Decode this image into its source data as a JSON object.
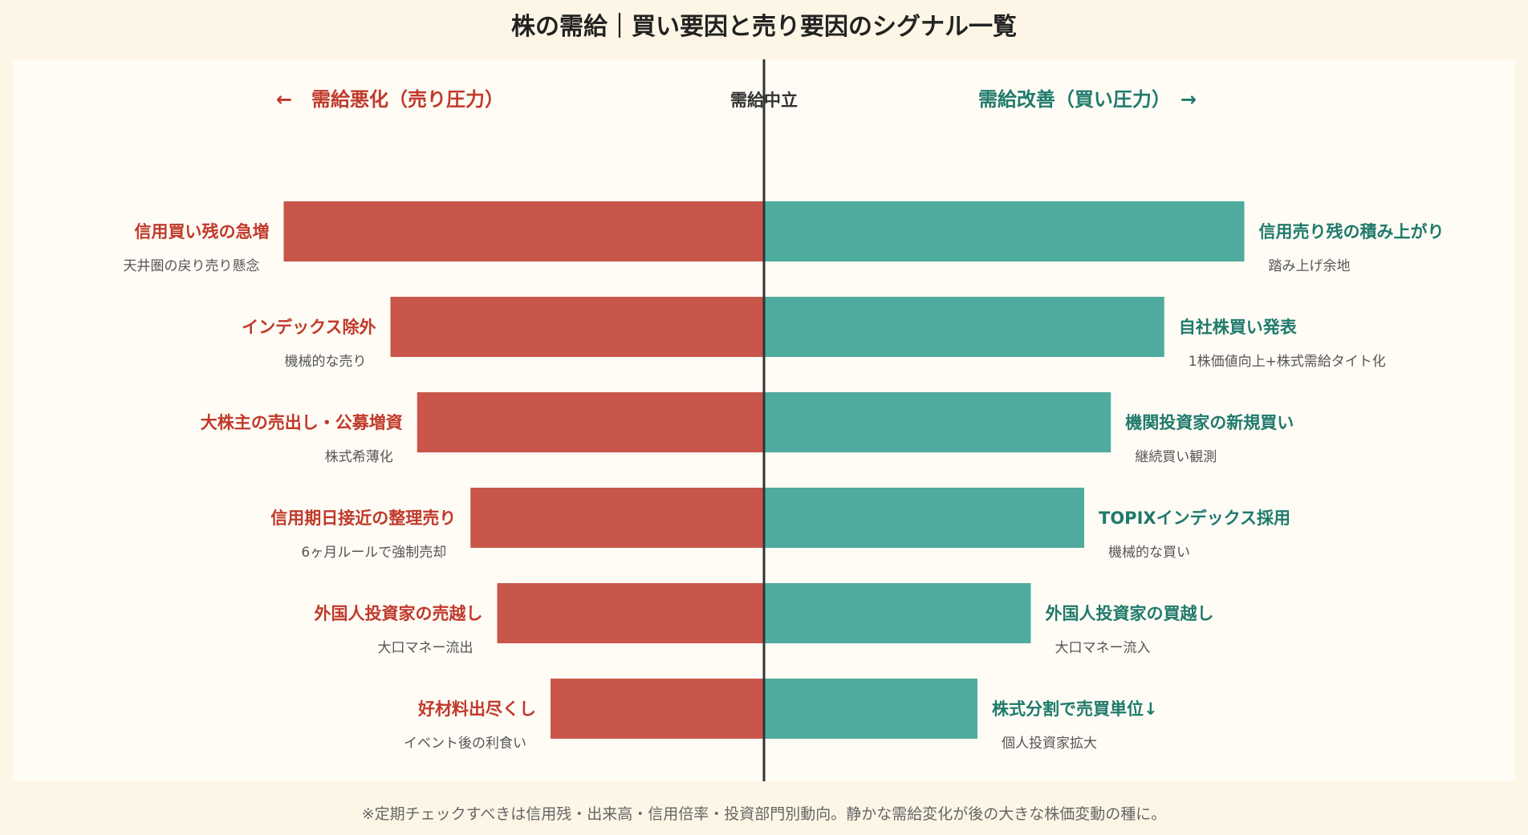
{
  "title": "株の需給｜買い要因と売り要因のシグナル一覧",
  "footnote": "※定期チェックすべきは信用残・出来高・信用倍率・投資部門別動向。静かな需給変化が後の大きな株価変動の種に。",
  "colors": {
    "sell": "#c9564a",
    "sell_text": "#c0392b",
    "buy": "#4eab9e",
    "buy_text": "#1f7a6c",
    "axis": "#333333",
    "sub_text": "#555555"
  },
  "chart_data": {
    "type": "bar",
    "orientation": "horizontal-diverging",
    "header": {
      "left": "←　需給悪化（売り圧力）",
      "center": "需給中立",
      "right": "需給改善（買い圧力）　→"
    },
    "series": [
      {
        "name": "売り要因",
        "direction": "left",
        "categories": [
          "信用買い残の急増",
          "インデックス除外",
          "大株主の売出し・公募増資",
          "信用期日接近の整理売り",
          "外国人投資家の売越し",
          "好材料出尽くし"
        ],
        "notes": [
          "天井圏の戻り売り懸念",
          "機械的な売り",
          "株式希薄化",
          "6ヶ月ルールで強制売却",
          "大口マネー流出",
          "イベント後の利食い"
        ],
        "values": [
          90,
          70,
          65,
          55,
          50,
          40
        ]
      },
      {
        "name": "買い要因",
        "direction": "right",
        "categories": [
          "信用売り残の積み上がり",
          "自社株買い発表",
          "機関投資家の新規買い",
          "TOPIXインデックス採用",
          "外国人投資家の買越し",
          "株式分割で売買単位↓"
        ],
        "notes": [
          "踏み上げ余地",
          "1株価値向上+株式需給タイト化",
          "継続買い観測",
          "機械的な買い",
          "大口マネー流入",
          "個人投資家拡大"
        ],
        "values": [
          90,
          75,
          65,
          60,
          50,
          40
        ]
      }
    ],
    "xlim": [
      -100,
      100
    ],
    "grid": false
  }
}
